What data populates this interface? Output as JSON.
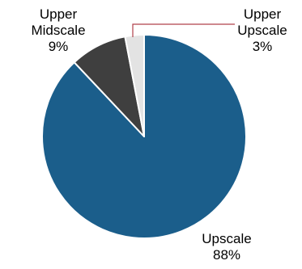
{
  "chart_data": {
    "type": "pie",
    "title": "",
    "slices": [
      {
        "label_lines": [
          "Upscale"
        ],
        "value": 88,
        "value_label": "88%",
        "color": "#1b5e8b"
      },
      {
        "label_lines": [
          "Upper",
          "Midscale"
        ],
        "value": 9,
        "value_label": "9%",
        "color": "#3f3f3f"
      },
      {
        "label_lines": [
          "Upper",
          "Upscale"
        ],
        "value": 3,
        "value_label": "3%",
        "color": "#e3e3e3"
      }
    ],
    "start": "12 o'clock",
    "direction": "clockwise",
    "slice_border_color": "#ffffff",
    "leader_line_color": "#b0414b"
  }
}
